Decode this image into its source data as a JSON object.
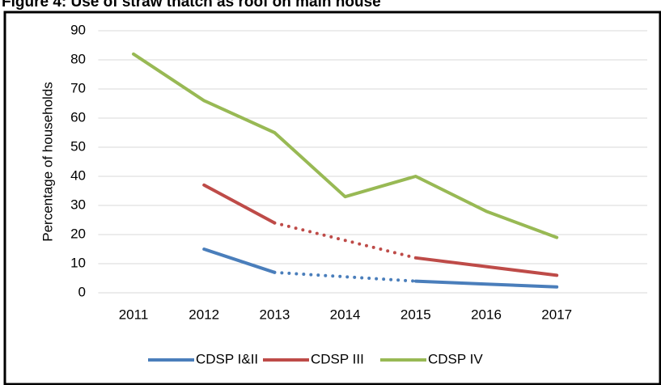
{
  "chart_data": {
    "type": "line",
    "title": "Figure 4: Use of straw thatch as roof on main house",
    "y_label": "Percentage of households",
    "categories": [
      "2011",
      "2012",
      "2013",
      "2014",
      "2015",
      "2016",
      "2017"
    ],
    "series": [
      {
        "name": "CDSP I&II",
        "color": "#4a7ebb",
        "values": [
          null,
          15,
          7,
          null,
          4,
          3,
          2
        ]
      },
      {
        "name": "CDSP III",
        "color": "#be4b48",
        "values": [
          null,
          37,
          24,
          null,
          12,
          9,
          6
        ]
      },
      {
        "name": "CDSP IV",
        "color": "#98b954",
        "values": [
          82,
          66,
          55,
          33,
          40,
          28,
          19
        ]
      }
    ],
    "gap_style": "dotted",
    "ylim": [
      0,
      90
    ],
    "yticks": [
      0,
      10,
      20,
      30,
      40,
      50,
      60,
      70,
      80,
      90
    ],
    "grid": true,
    "legend": "bottom"
  }
}
